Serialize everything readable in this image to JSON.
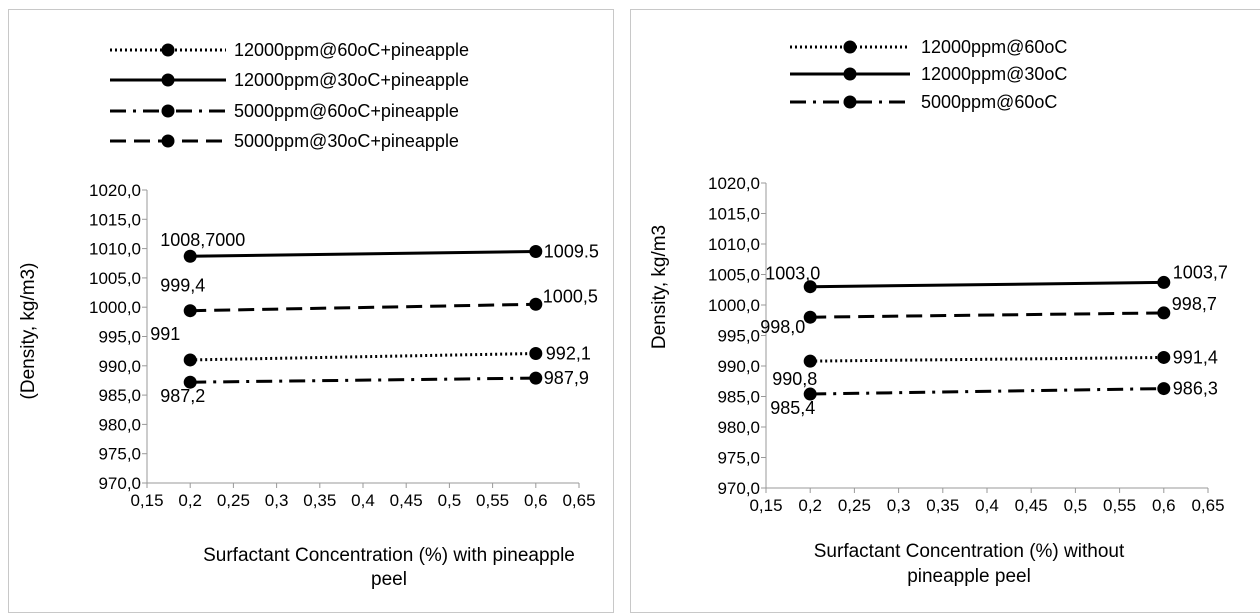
{
  "chart_data": [
    {
      "type": "line",
      "xlabel": "Surfactant Concentration (%) with pineapple peel",
      "ylabel": "(Density, kg/m3)",
      "xlim": [
        0.15,
        0.65
      ],
      "ylim": [
        970,
        1020
      ],
      "x_ticks": [
        "0,15",
        "0,2",
        "0,25",
        "0,3",
        "0,35",
        "0,4",
        "0,45",
        "0,5",
        "0,55",
        "0,6",
        "0,65"
      ],
      "y_ticks": [
        "970,0",
        "975,0",
        "980,0",
        "985,0",
        "990,0",
        "995,0",
        "1000,0",
        "1005,0",
        "1010,0",
        "1015,0",
        "1020,0"
      ],
      "grid": false,
      "legend_position": "top",
      "series": [
        {
          "name": "12000ppm@60oC+pineapple",
          "style": "dotted",
          "x": [
            0.2,
            0.6
          ],
          "y": [
            991,
            992.1
          ],
          "labels": [
            "991",
            "992,1"
          ]
        },
        {
          "name": "12000ppm@30oC+pineapple",
          "style": "solid",
          "x": [
            0.2,
            0.6
          ],
          "y": [
            1008.7,
            1009.5
          ],
          "labels": [
            "1008,7000",
            "1009.5"
          ]
        },
        {
          "name": "5000ppm@60oC+pineapple",
          "style": "dashdot",
          "x": [
            0.2,
            0.6
          ],
          "y": [
            987.2,
            987.9
          ],
          "labels": [
            "987,2",
            "987,9"
          ]
        },
        {
          "name": "5000ppm@30oC+pineapple",
          "style": "dashed",
          "x": [
            0.2,
            0.6
          ],
          "y": [
            999.4,
            1000.5
          ],
          "labels": [
            "999,4",
            "1000,5"
          ]
        }
      ]
    },
    {
      "type": "line",
      "xlabel": "Surfactant Concentration (%) without pineapple peel",
      "ylabel": "Density, kg/m3",
      "xlim": [
        0.15,
        0.65
      ],
      "ylim": [
        970,
        1020
      ],
      "x_ticks": [
        "0,15",
        "0,2",
        "0,25",
        "0,3",
        "0,35",
        "0,4",
        "0,45",
        "0,5",
        "0,55",
        "0,6",
        "0,65"
      ],
      "y_ticks": [
        "970,0",
        "975,0",
        "980,0",
        "985,0",
        "990,0",
        "995,0",
        "1000,0",
        "1005,0",
        "1010,0",
        "1015,0",
        "1020,0"
      ],
      "grid": false,
      "legend_position": "top",
      "series": [
        {
          "name": "12000ppm@60oC",
          "style": "dotted",
          "x": [
            0.2,
            0.6
          ],
          "y": [
            990.8,
            991.4
          ],
          "labels": [
            "990,8",
            "991,4"
          ]
        },
        {
          "name": "12000ppm@30oC",
          "style": "solid",
          "x": [
            0.2,
            0.6
          ],
          "y": [
            1003.0,
            1003.7
          ],
          "labels": [
            "1003,0",
            "1003,7"
          ]
        },
        {
          "name": "5000ppm@60oC",
          "style": "dashdot",
          "x": [
            0.2,
            0.6
          ],
          "y": [
            985.4,
            986.3
          ],
          "labels": [
            "985,4",
            "986,3"
          ]
        },
        {
          "name": "",
          "style": "dashed",
          "x": [
            0.2,
            0.6
          ],
          "y": [
            998.0,
            998.7
          ],
          "labels": [
            "998,0",
            "998,7"
          ]
        }
      ]
    }
  ]
}
